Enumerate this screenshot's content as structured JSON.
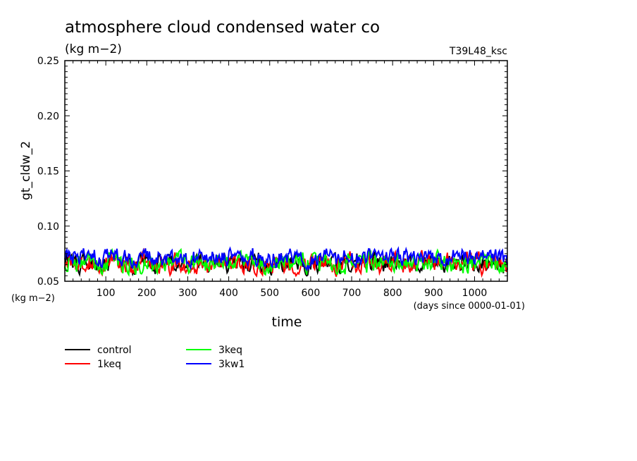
{
  "chart_data": {
    "type": "line",
    "title": "atmosphere cloud condensed water co",
    "subtitle": "(kg m−2)",
    "run_label": "T39L48_ksc",
    "xlabel": "time",
    "x_units": "(days since 0000-01-01)",
    "ylabel": "gt_cldw_2",
    "y_units": "(kg m−2)",
    "xlim": [
      0,
      1080
    ],
    "ylim": [
      0.05,
      0.25
    ],
    "x_ticks": [
      100,
      200,
      300,
      400,
      500,
      600,
      700,
      800,
      900,
      1000
    ],
    "y_ticks": [
      "0.05",
      "0.10",
      "0.15",
      "0.20",
      "0.25"
    ],
    "grid": false,
    "legend_position": "bottom-left",
    "series": [
      {
        "name": "control",
        "color": "#000000",
        "mean": 0.0665,
        "amplitude": 0.009,
        "min": 0.055,
        "max": 0.086
      },
      {
        "name": "1keq",
        "color": "#ff0000",
        "mean": 0.0665,
        "amplitude": 0.009,
        "min": 0.053,
        "max": 0.089
      },
      {
        "name": "3keq",
        "color": "#00ff00",
        "mean": 0.0665,
        "amplitude": 0.009,
        "min": 0.056,
        "max": 0.088
      },
      {
        "name": "3kw1",
        "color": "#0000ff",
        "mean": 0.0715,
        "amplitude": 0.008,
        "min": 0.06,
        "max": 0.089
      }
    ]
  }
}
